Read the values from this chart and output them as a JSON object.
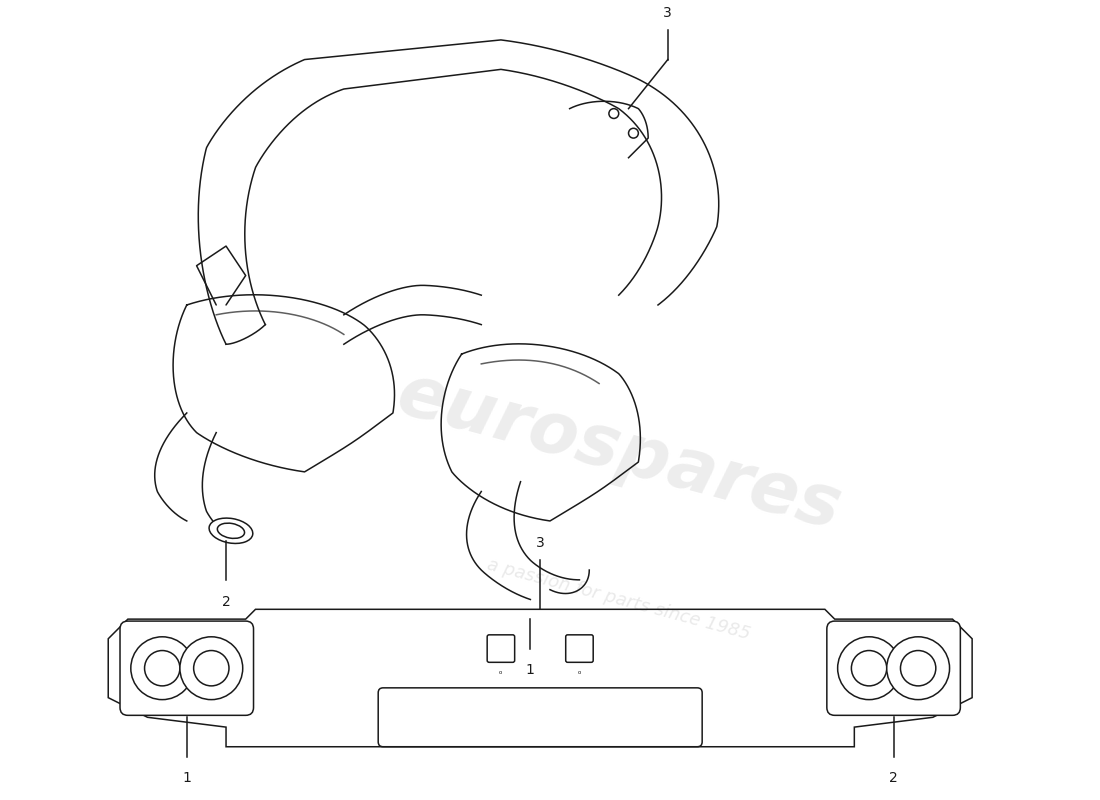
{
  "background_color": "#ffffff",
  "line_color": "#1a1a1a",
  "watermark_color1": "#d0d0d0",
  "watermark_color2": "#c8c8c8",
  "label_fontsize": 10,
  "figsize": [
    11.0,
    8.0
  ],
  "dpi": 100,
  "wm1": "eurospares",
  "wm2": "a passion for parts since 1985"
}
